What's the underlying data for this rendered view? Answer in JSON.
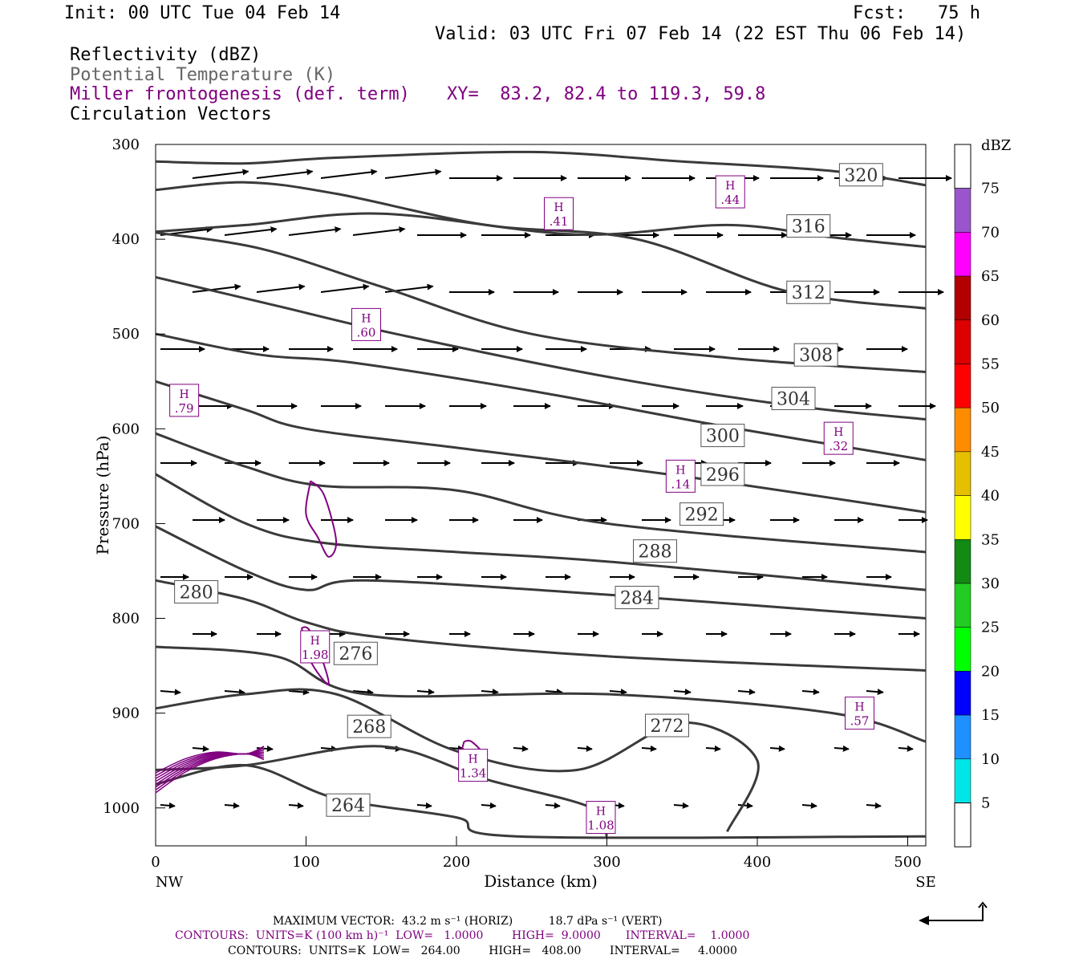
{
  "header": {
    "init": "Init: 00 UTC Tue 04 Feb 14",
    "fcst": "Fcst:   75 h",
    "valid": "Valid: 03 UTC Fri 07 Feb 14 (22 EST Thu 06 Feb 14)",
    "field1": "Reflectivity (dBZ)",
    "field2": "Potential Temperature (K)",
    "field3": "Miller frontogenesis (def. term)",
    "xy": "XY=  83.2, 82.4 to 119.3, 59.8",
    "field4": "Circulation Vectors"
  },
  "colors": {
    "theta": "#3a3a3a",
    "fronto": "#800080",
    "vectors": "#000000"
  },
  "chart_data": {
    "type": "line",
    "xlabel": "Distance (km)",
    "ylabel": "Pressure (hPa)",
    "xlim": [
      0,
      512
    ],
    "ylim": [
      1040,
      300
    ],
    "x_ticks": [
      "0",
      "100",
      "200",
      "300",
      "400",
      "500"
    ],
    "y_ticks": [
      "300",
      "400",
      "500",
      "600",
      "700",
      "800",
      "900",
      "1000"
    ],
    "x_left_label": "NW",
    "x_right_label": "SE",
    "theta_contours": [
      {
        "name": "320",
        "points": [
          [
            0,
            318
          ],
          [
            60,
            320
          ],
          [
            120,
            314
          ],
          [
            250,
            308
          ],
          [
            350,
            318
          ],
          [
            450,
            328
          ],
          [
            512,
            343
          ]
        ],
        "label_at": [
          469,
          332
        ]
      },
      {
        "name": "316",
        "points": [
          [
            0,
            392
          ],
          [
            60,
            385
          ],
          [
            150,
            373
          ],
          [
            280,
            395
          ],
          [
            380,
            385
          ],
          [
            450,
            398
          ],
          [
            512,
            408
          ]
        ],
        "label_at": [
          434,
          386
        ]
      },
      {
        "name": "312",
        "points": [
          [
            0,
            348
          ],
          [
            60,
            340
          ],
          [
            120,
            352
          ],
          [
            220,
            385
          ],
          [
            320,
            400
          ],
          [
            420,
            455
          ],
          [
            512,
            473
          ]
        ],
        "label_at": [
          434,
          456
        ]
      },
      {
        "name": "308",
        "points": [
          [
            0,
            393
          ],
          [
            70,
            410
          ],
          [
            150,
            450
          ],
          [
            250,
            500
          ],
          [
            380,
            525
          ],
          [
            512,
            540
          ]
        ],
        "label_at": [
          439,
          522
        ]
      },
      {
        "name": "304",
        "points": [
          [
            0,
            440
          ],
          [
            80,
            470
          ],
          [
            160,
            500
          ],
          [
            300,
            545
          ],
          [
            420,
            575
          ],
          [
            512,
            590
          ]
        ],
        "label_at": [
          424,
          568
        ]
      },
      {
        "name": "300",
        "points": [
          [
            0,
            500
          ],
          [
            70,
            522
          ],
          [
            130,
            530
          ],
          [
            250,
            560
          ],
          [
            380,
            598
          ],
          [
            512,
            633
          ]
        ],
        "label_at": [
          377,
          607
        ]
      },
      {
        "name": "296",
        "points": [
          [
            0,
            550
          ],
          [
            60,
            580
          ],
          [
            100,
            600
          ],
          [
            200,
            620
          ],
          [
            350,
            650
          ],
          [
            512,
            688
          ]
        ],
        "label_at": [
          377,
          648
        ]
      },
      {
        "name": "292",
        "points": [
          [
            0,
            605
          ],
          [
            60,
            640
          ],
          [
            110,
            660
          ],
          [
            200,
            665
          ],
          [
            300,
            700
          ],
          [
            512,
            730
          ]
        ],
        "label_at": [
          363,
          690
        ]
      },
      {
        "name": "288",
        "points": [
          [
            0,
            648
          ],
          [
            60,
            700
          ],
          [
            110,
            720
          ],
          [
            200,
            730
          ],
          [
            300,
            740
          ],
          [
            512,
            770
          ]
        ],
        "label_at": [
          332,
          729
        ]
      },
      {
        "name": "284",
        "points": [
          [
            0,
            703
          ],
          [
            60,
            750
          ],
          [
            100,
            770
          ],
          [
            140,
            760
          ],
          [
            300,
            775
          ],
          [
            512,
            800
          ]
        ],
        "label_at": [
          320,
          778
        ]
      },
      {
        "name": "280",
        "points": [
          [
            0,
            760
          ],
          [
            60,
            780
          ],
          [
            100,
            804
          ],
          [
            150,
            820
          ],
          [
            300,
            840
          ],
          [
            512,
            855
          ]
        ],
        "label_at": [
          27,
          772
        ]
      },
      {
        "name": "276",
        "points": [
          [
            0,
            830
          ],
          [
            80,
            840
          ],
          [
            140,
            880
          ],
          [
            300,
            880
          ],
          [
            450,
            900
          ],
          [
            512,
            930
          ]
        ],
        "label_at": [
          133,
          837
        ]
      },
      {
        "name": "272",
        "points": [
          [
            0,
            895
          ],
          [
            60,
            880
          ],
          [
            120,
            880
          ],
          [
            200,
            940
          ],
          [
            280,
            960
          ],
          [
            350,
            910
          ],
          [
            400,
            950
          ],
          [
            380,
            1025
          ]
        ],
        "label_at": [
          340,
          913
        ]
      },
      {
        "name": "268",
        "points": [
          [
            0,
            960
          ],
          [
            60,
            955
          ],
          [
            150,
            935
          ],
          [
            220,
            970
          ],
          [
            290,
            1000
          ],
          [
            300,
            1030
          ]
        ],
        "label_at": [
          142,
          914
        ]
      },
      {
        "name": "264",
        "points": [
          [
            0,
            975
          ],
          [
            60,
            955
          ],
          [
            120,
            990
          ],
          [
            200,
            1010
          ],
          [
            240,
            1030
          ],
          [
            512,
            1030
          ]
        ],
        "label_at": [
          128,
          997
        ]
      }
    ],
    "fronto_maxima": [
      {
        "label": "H",
        "value": ".44",
        "point": [
          382,
          350
        ]
      },
      {
        "label": "H",
        "value": ".41",
        "point": [
          268,
          373
        ]
      },
      {
        "label": "H",
        "value": ".60",
        "point": [
          140,
          490
        ]
      },
      {
        "label": "H",
        "value": ".79",
        "point": [
          19,
          570
        ]
      },
      {
        "label": "H",
        "value": ".32",
        "point": [
          454,
          610
        ]
      },
      {
        "label": "H",
        "value": ".14",
        "point": [
          349,
          650
        ]
      },
      {
        "label": "H",
        "value": "1.98",
        "point": [
          106,
          830
        ]
      },
      {
        "label": "H",
        "value": ".57",
        "point": [
          468,
          900
        ]
      },
      {
        "label": "H",
        "value": "1.34",
        "point": [
          211,
          955
        ]
      },
      {
        "label": "H",
        "value": "1.08",
        "point": [
          296,
          1010
        ]
      }
    ],
    "colorbar": {
      "title": "dBZ",
      "levels": [
        "5",
        "10",
        "15",
        "20",
        "25",
        "30",
        "35",
        "40",
        "45",
        "50",
        "55",
        "60",
        "65",
        "70",
        "75"
      ],
      "colors": [
        "#00e5e5",
        "#1e90ff",
        "#0000ff",
        "#00ff00",
        "#22cc22",
        "#138a13",
        "#ffff00",
        "#e5c000",
        "#ff8c00",
        "#ff0000",
        "#dd0000",
        "#b20000",
        "#ff00ff",
        "#9955cc",
        "#ffffff"
      ]
    }
  },
  "footer": {
    "max_vector": "MAXIMUM VECTOR:  43.2 m s⁻¹ (HORIZ)          18.7 dPa s⁻¹ (VERT)",
    "contours1": "CONTOURS:  UNITS=K (100 km h)⁻¹  LOW=   1.0000        HIGH=  9.0000       INTERVAL=    1.0000",
    "contours2": "CONTOURS:  UNITS=K  LOW=   264.00        HIGH=   408.00        INTERVAL=     4.0000"
  }
}
